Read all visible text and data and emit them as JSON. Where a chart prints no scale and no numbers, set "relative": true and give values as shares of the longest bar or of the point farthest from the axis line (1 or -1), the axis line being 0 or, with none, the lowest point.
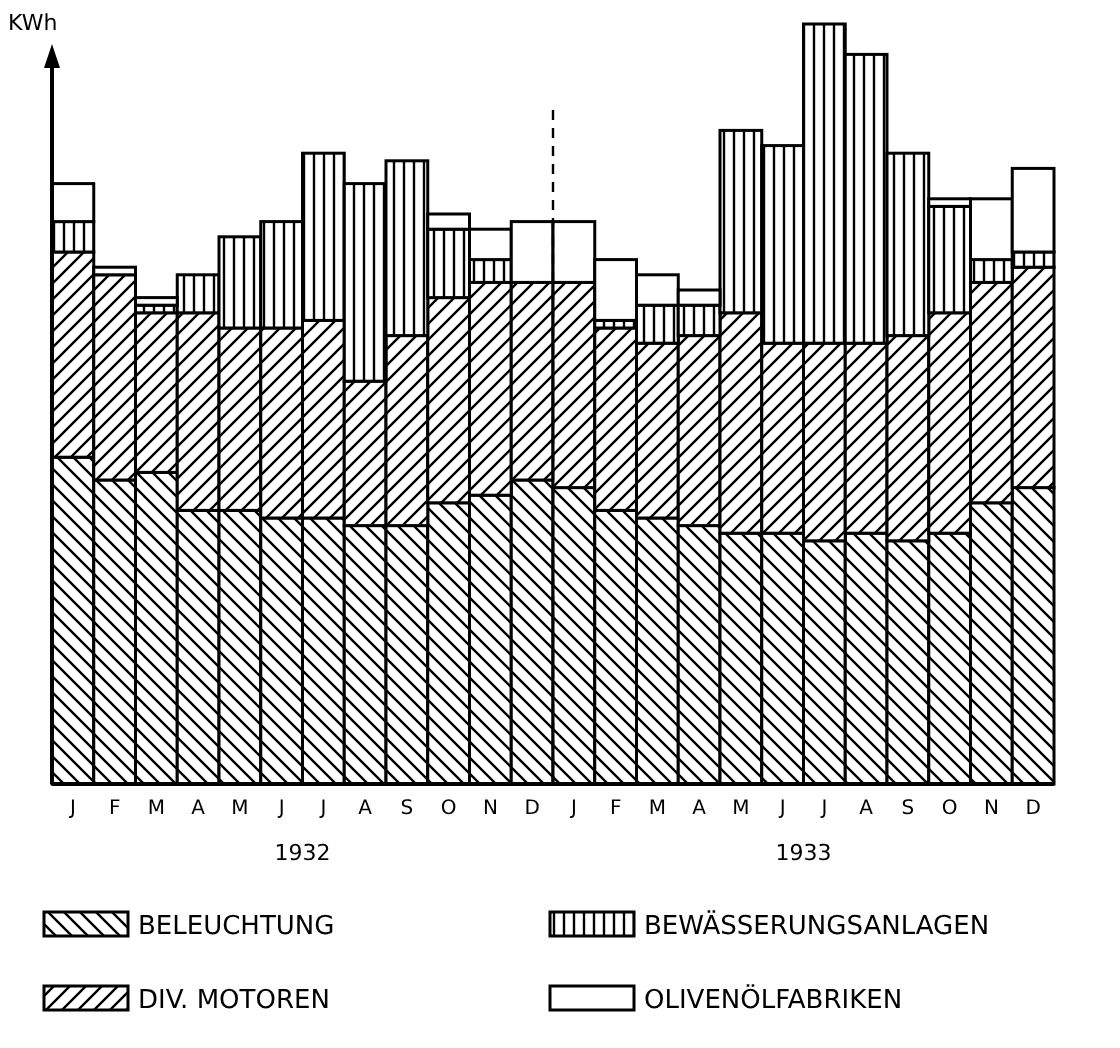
{
  "chart_data": {
    "type": "bar",
    "stacked": true,
    "relative": true,
    "ylabel": "KWh",
    "legend": "bottom",
    "categories": [
      "J",
      "F",
      "M",
      "A",
      "M",
      "J",
      "J",
      "A",
      "S",
      "O",
      "N",
      "D",
      "J",
      "F",
      "M",
      "A",
      "M",
      "J",
      "J",
      "A",
      "S",
      "O",
      "N",
      "D"
    ],
    "annotations": [
      "1932",
      "1933"
    ],
    "series": [
      {
        "name": "BELEUCHTUNG",
        "color": "#000000",
        "values": [
          0.43,
          0.4,
          0.41,
          0.36,
          0.36,
          0.35,
          0.35,
          0.34,
          0.34,
          0.37,
          0.38,
          0.4,
          0.39,
          0.36,
          0.35,
          0.34,
          0.33,
          0.33,
          0.32,
          0.33,
          0.32,
          0.33,
          0.37,
          0.39
        ]
      },
      {
        "name": "DIV. MOTOREN",
        "color": "#000000",
        "values": [
          0.27,
          0.27,
          0.21,
          0.26,
          0.24,
          0.25,
          0.26,
          0.19,
          0.25,
          0.27,
          0.28,
          0.26,
          0.27,
          0.24,
          0.23,
          0.25,
          0.29,
          0.25,
          0.26,
          0.25,
          0.27,
          0.29,
          0.29,
          0.29
        ]
      },
      {
        "name": "BEWÄSSERUNGSANLAGEN",
        "color": "#000000",
        "values": [
          0.04,
          0,
          0.01,
          0.05,
          0.12,
          0.14,
          0.22,
          0.26,
          0.23,
          0.09,
          0.03,
          0,
          0,
          0.01,
          0.05,
          0.04,
          0.24,
          0.26,
          0.42,
          0.38,
          0.24,
          0.14,
          0.03,
          0.02
        ]
      },
      {
        "name": "OLIVENÖLFABRIKEN",
        "color": "#000000",
        "values": [
          0.05,
          0.01,
          0.01,
          0,
          0,
          0,
          0,
          0,
          0,
          0.02,
          0.04,
          0.08,
          0.08,
          0.08,
          0.04,
          0.02,
          0,
          0,
          0,
          0,
          0,
          0.01,
          0.08,
          0.11
        ]
      }
    ]
  }
}
